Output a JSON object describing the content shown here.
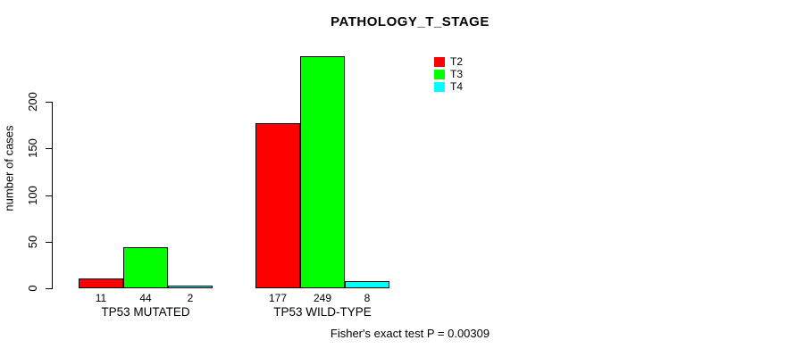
{
  "chart_data": {
    "type": "bar",
    "title": "PATHOLOGY_T_STAGE",
    "ylabel": "number of cases",
    "categories": [
      "TP53 MUTATED",
      "TP53 WILD-TYPE"
    ],
    "series": [
      {
        "name": "T2",
        "color": "#FF0000",
        "values": [
          11,
          177
        ]
      },
      {
        "name": "T3",
        "color": "#00FF00",
        "values": [
          44,
          249
        ]
      },
      {
        "name": "T4",
        "color": "#00FFFF",
        "values": [
          2,
          8
        ]
      }
    ],
    "bar_value_labels": [
      [
        "11",
        "44",
        "2"
      ],
      [
        "177",
        "249",
        "8"
      ]
    ],
    "yticks": [
      0,
      50,
      100,
      150,
      200
    ],
    "ylim": [
      0,
      255
    ],
    "grid": false,
    "legend_position": "top-right",
    "annotation": "Fisher's exact test P = 0.00309",
    "axis_color": "#000000",
    "background_color": "#FFFFFF"
  }
}
